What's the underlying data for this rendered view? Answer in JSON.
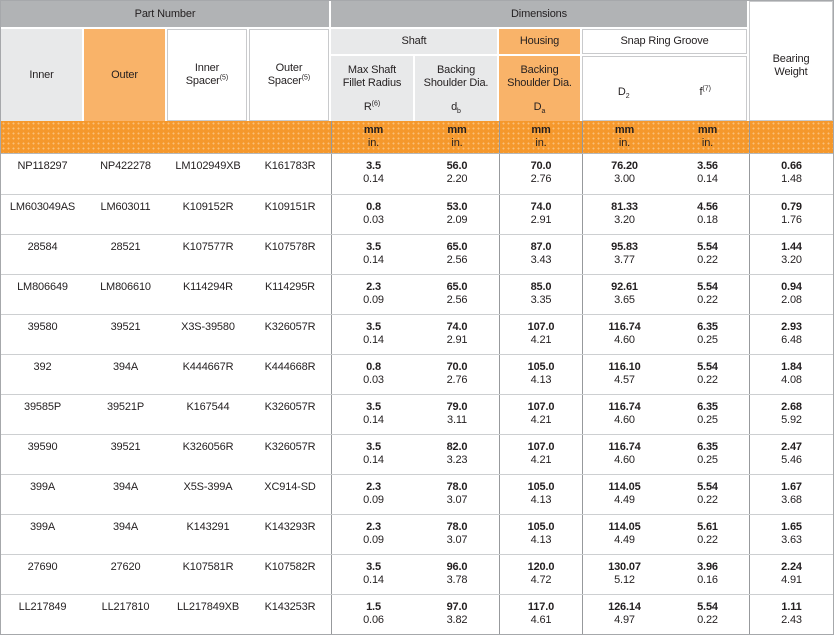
{
  "header": {
    "part_number": "Part Number",
    "dimensions": "Dimensions",
    "bearing_weight": "Bearing Weight",
    "columns": {
      "inner": "Inner",
      "outer": "Outer",
      "inner_spacer": {
        "label": "Inner Spacer",
        "sup": "(5)"
      },
      "outer_spacer": {
        "label": "Outer Spacer",
        "sup": "(5)"
      },
      "shaft": "Shaft",
      "housing": "Housing",
      "snap_ring_groove": "Snap Ring Groove",
      "fillet_radius": {
        "label": "Max Shaft Fillet Radius",
        "symbol": "R",
        "sup": "(6)"
      },
      "backing_shoulder_shaft": {
        "label": "Backing Shoulder Dia.",
        "symbol": "d",
        "sub": "b"
      },
      "backing_shoulder_housing": {
        "label": "Backing Shoulder Dia.",
        "symbol": "D",
        "sub": "a"
      },
      "d2": {
        "symbol": "D",
        "sub": "2"
      },
      "f": {
        "symbol": "f",
        "sup": "(7)"
      }
    }
  },
  "units": {
    "metric": "mm",
    "imperial": "in."
  },
  "colors": {
    "header_band_gray": "#b1b3b5",
    "header_cell_gray": "#e8e9ea",
    "highlight_light_orange": "#f9b369",
    "units_row_orange": "#f5982c",
    "text": "#231f20"
  },
  "rows": [
    {
      "inner": "NP118297",
      "outer": "NP422278",
      "inner_spacer": "LM102949XB",
      "outer_spacer": "K161783R",
      "r_mm": "3.5",
      "r_in": "0.14",
      "db_mm": "56.0",
      "db_in": "2.20",
      "da_mm": "70.0",
      "da_in": "2.76",
      "d2_mm": "76.20",
      "d2_in": "3.00",
      "f_mm": "3.56",
      "f_in": "0.14",
      "wt_top": "0.66",
      "wt_bottom": "1.48"
    },
    {
      "inner": "LM603049AS",
      "outer": "LM603011",
      "inner_spacer": "K109152R",
      "outer_spacer": "K109151R",
      "r_mm": "0.8",
      "r_in": "0.03",
      "db_mm": "53.0",
      "db_in": "2.09",
      "da_mm": "74.0",
      "da_in": "2.91",
      "d2_mm": "81.33",
      "d2_in": "3.20",
      "f_mm": "4.56",
      "f_in": "0.18",
      "wt_top": "0.79",
      "wt_bottom": "1.76"
    },
    {
      "inner": "28584",
      "outer": "28521",
      "inner_spacer": "K107577R",
      "outer_spacer": "K107578R",
      "r_mm": "3.5",
      "r_in": "0.14",
      "db_mm": "65.0",
      "db_in": "2.56",
      "da_mm": "87.0",
      "da_in": "3.43",
      "d2_mm": "95.83",
      "d2_in": "3.77",
      "f_mm": "5.54",
      "f_in": "0.22",
      "wt_top": "1.44",
      "wt_bottom": "3.20"
    },
    {
      "inner": "LM806649",
      "outer": "LM806610",
      "inner_spacer": "K114294R",
      "outer_spacer": "K114295R",
      "r_mm": "2.3",
      "r_in": "0.09",
      "db_mm": "65.0",
      "db_in": "2.56",
      "da_mm": "85.0",
      "da_in": "3.35",
      "d2_mm": "92.61",
      "d2_in": "3.65",
      "f_mm": "5.54",
      "f_in": "0.22",
      "wt_top": "0.94",
      "wt_bottom": "2.08"
    },
    {
      "inner": "39580",
      "outer": "39521",
      "inner_spacer": "X3S-39580",
      "outer_spacer": "K326057R",
      "r_mm": "3.5",
      "r_in": "0.14",
      "db_mm": "74.0",
      "db_in": "2.91",
      "da_mm": "107.0",
      "da_in": "4.21",
      "d2_mm": "116.74",
      "d2_in": "4.60",
      "f_mm": "6.35",
      "f_in": "0.25",
      "wt_top": "2.93",
      "wt_bottom": "6.48"
    },
    {
      "inner": "392",
      "outer": "394A",
      "inner_spacer": "K444667R",
      "outer_spacer": "K444668R",
      "r_mm": "0.8",
      "r_in": "0.03",
      "db_mm": "70.0",
      "db_in": "2.76",
      "da_mm": "105.0",
      "da_in": "4.13",
      "d2_mm": "116.10",
      "d2_in": "4.57",
      "f_mm": "5.54",
      "f_in": "0.22",
      "wt_top": "1.84",
      "wt_bottom": "4.08"
    },
    {
      "inner": "39585P",
      "outer": "39521P",
      "inner_spacer": "K167544",
      "outer_spacer": "K326057R",
      "r_mm": "3.5",
      "r_in": "0.14",
      "db_mm": "79.0",
      "db_in": "3.11",
      "da_mm": "107.0",
      "da_in": "4.21",
      "d2_mm": "116.74",
      "d2_in": "4.60",
      "f_mm": "6.35",
      "f_in": "0.25",
      "wt_top": "2.68",
      "wt_bottom": "5.92"
    },
    {
      "inner": "39590",
      "outer": "39521",
      "inner_spacer": "K326056R",
      "outer_spacer": "K326057R",
      "r_mm": "3.5",
      "r_in": "0.14",
      "db_mm": "82.0",
      "db_in": "3.23",
      "da_mm": "107.0",
      "da_in": "4.21",
      "d2_mm": "116.74",
      "d2_in": "4.60",
      "f_mm": "6.35",
      "f_in": "0.25",
      "wt_top": "2.47",
      "wt_bottom": "5.46"
    },
    {
      "inner": "399A",
      "outer": "394A",
      "inner_spacer": "X5S-399A",
      "outer_spacer": "XC914-SD",
      "r_mm": "2.3",
      "r_in": "0.09",
      "db_mm": "78.0",
      "db_in": "3.07",
      "da_mm": "105.0",
      "da_in": "4.13",
      "d2_mm": "114.05",
      "d2_in": "4.49",
      "f_mm": "5.54",
      "f_in": "0.22",
      "wt_top": "1.67",
      "wt_bottom": "3.68"
    },
    {
      "inner": "399A",
      "outer": "394A",
      "inner_spacer": "K143291",
      "outer_spacer": "K143293R",
      "r_mm": "2.3",
      "r_in": "0.09",
      "db_mm": "78.0",
      "db_in": "3.07",
      "da_mm": "105.0",
      "da_in": "4.13",
      "d2_mm": "114.05",
      "d2_in": "4.49",
      "f_mm": "5.61",
      "f_in": "0.22",
      "wt_top": "1.65",
      "wt_bottom": "3.63"
    },
    {
      "inner": "27690",
      "outer": "27620",
      "inner_spacer": "K107581R",
      "outer_spacer": "K107582R",
      "r_mm": "3.5",
      "r_in": "0.14",
      "db_mm": "96.0",
      "db_in": "3.78",
      "da_mm": "120.0",
      "da_in": "4.72",
      "d2_mm": "130.07",
      "d2_in": "5.12",
      "f_mm": "3.96",
      "f_in": "0.16",
      "wt_top": "2.24",
      "wt_bottom": "4.91"
    },
    {
      "inner": "LL217849",
      "outer": "LL217810",
      "inner_spacer": "LL217849XB",
      "outer_spacer": "K143253R",
      "r_mm": "1.5",
      "r_in": "0.06",
      "db_mm": "97.0",
      "db_in": "3.82",
      "da_mm": "117.0",
      "da_in": "4.61",
      "d2_mm": "126.14",
      "d2_in": "4.97",
      "f_mm": "5.54",
      "f_in": "0.22",
      "wt_top": "1.11",
      "wt_bottom": "2.43"
    }
  ]
}
